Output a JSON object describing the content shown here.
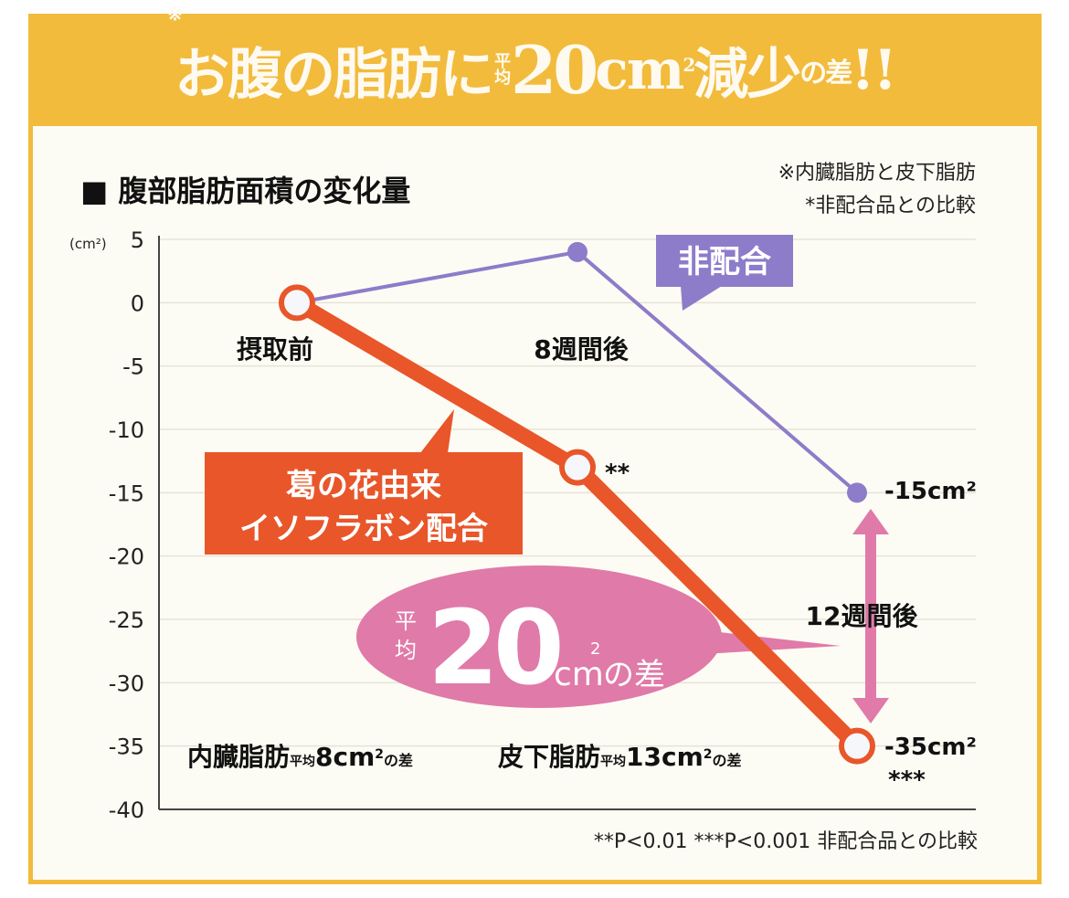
{
  "headline": {
    "part1": "お腹の脂肪",
    "note_mark": "※",
    "part2": "に",
    "avg_top": "平",
    "avg_bottom": "均",
    "value": "20",
    "unit": "cm",
    "unit_sup": "2",
    "part3": "減少",
    "part4": "の差",
    "exclaim": "!!"
  },
  "colors": {
    "panel": "#f2bb3c",
    "background": "#fdfcf4",
    "orange": "#e8562a",
    "purple": "#8d7cc9",
    "pink": "#e07aa8",
    "grid": "#e6e3d8",
    "text": "#111111"
  },
  "chart_data": {
    "type": "line",
    "title": "■ 腹部脂肪面積の変化量",
    "notes": [
      "※内臓脂肪と皮下脂肪",
      "*非配合品との比較"
    ],
    "ylabel": "(cm²)",
    "ylim": [
      -40,
      5
    ],
    "yticks": [
      5,
      0,
      -5,
      -10,
      -15,
      -20,
      -25,
      -30,
      -35,
      -40
    ],
    "ytick_labels": [
      "5",
      "0",
      "-5",
      "-10",
      "-15",
      "-20",
      "-25",
      "-30",
      "-35",
      "-40"
    ],
    "grid": true,
    "categories": [
      "摂取前",
      "8週間後",
      "12週間後"
    ],
    "series": [
      {
        "name": "葛の花由来イソフラボン配合",
        "label_line1": "葛の花由来",
        "label_line2": "イソフラボン配合",
        "values": [
          0,
          -13,
          -35
        ],
        "significance": [
          "",
          "**",
          "***"
        ]
      },
      {
        "name": "非配合",
        "values": [
          0,
          4,
          -15
        ]
      }
    ],
    "end_labels": {
      "placebo": "-15cm²",
      "active": "-35cm²"
    },
    "difference_callout": {
      "avg_top": "平",
      "avg_bottom": "均",
      "value": "20",
      "unit": "cm",
      "sup": "2",
      "suffix": "の差"
    },
    "breakdown": {
      "visceral_label": "内臓脂肪",
      "visceral_avg": "平均",
      "visceral_value": "8cm",
      "visceral_sup": "2",
      "visceral_suffix": "の差",
      "subcutaneous_label": "皮下脂肪",
      "subcutaneous_avg": "平均",
      "subcutaneous_value": "13cm",
      "subcutaneous_sup": "2",
      "subcutaneous_suffix": "の差"
    },
    "footnote": "**P<0.01 ***P<0.001 非配合品との比較"
  }
}
